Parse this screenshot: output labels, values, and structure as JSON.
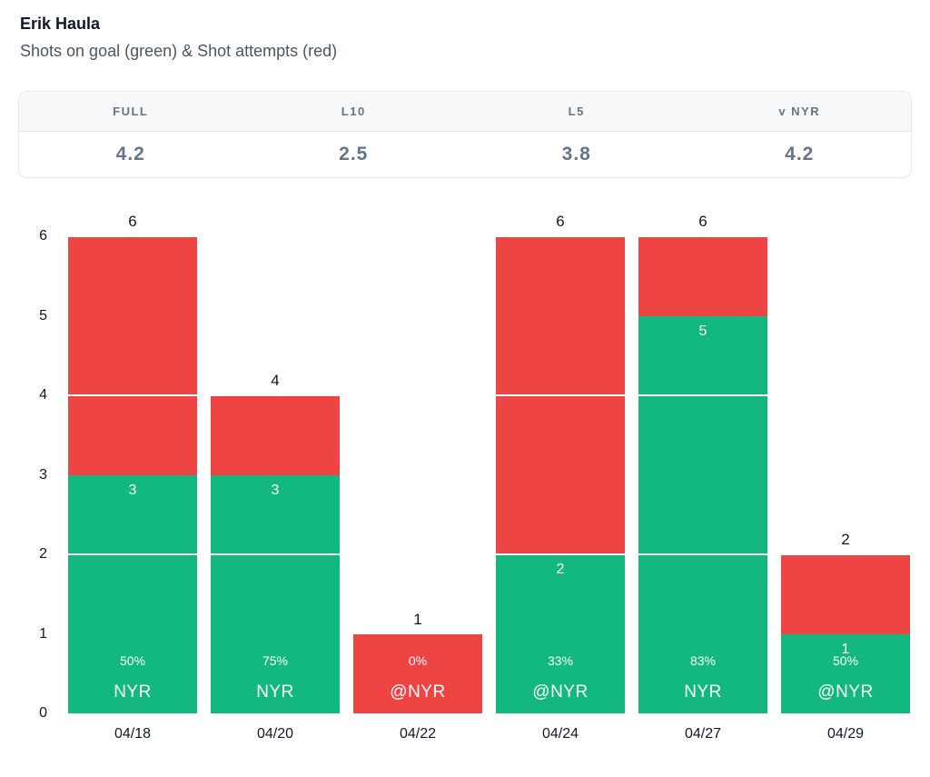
{
  "header": {
    "title": "Erik Haula",
    "subtitle": "Shots on goal (green) & Shot attempts (red)"
  },
  "stats_table": {
    "columns": [
      {
        "label": "FULL",
        "value": "4.2"
      },
      {
        "label": "L10",
        "value": "2.5"
      },
      {
        "label": "L5",
        "value": "3.8"
      },
      {
        "label": "v NYR",
        "value": "4.2"
      }
    ]
  },
  "colors": {
    "green": "#12b87e",
    "red": "#ef4444",
    "gridline": "#ffffff",
    "card_border": "#e7e9ee",
    "card_header_bg": "#f7f8fa"
  },
  "chart_data": {
    "type": "bar",
    "stacked": true,
    "title": "Shots on goal (green) & Shot attempts (red)",
    "categories": [
      "04/18",
      "04/20",
      "04/22",
      "04/24",
      "04/27",
      "04/29"
    ],
    "series": [
      {
        "name": "Shots on goal",
        "color": "#12b87e",
        "values": [
          3,
          3,
          0,
          2,
          5,
          1
        ]
      },
      {
        "name": "Shot attempts",
        "color": "#ef4444",
        "values": [
          6,
          4,
          1,
          6,
          6,
          2
        ]
      }
    ],
    "total_labels": [
      "6",
      "4",
      "1",
      "6",
      "6",
      "2"
    ],
    "segment_labels": [
      "3",
      "3",
      "",
      "2",
      "5",
      "1"
    ],
    "percent_labels": [
      "50%",
      "75%",
      "0%",
      "33%",
      "83%",
      "50%"
    ],
    "team_labels": [
      "NYR",
      "NYR",
      "@NYR",
      "@NYR",
      "NYR",
      "@NYR"
    ],
    "ylim": [
      0,
      6
    ],
    "yticks": [
      0,
      1,
      2,
      3,
      4,
      5,
      6
    ],
    "gridlines_at": [
      2,
      4,
      6
    ],
    "xlabel": "",
    "ylabel": "",
    "legend_position": "none",
    "grid": "white-overlay-on-bars"
  }
}
